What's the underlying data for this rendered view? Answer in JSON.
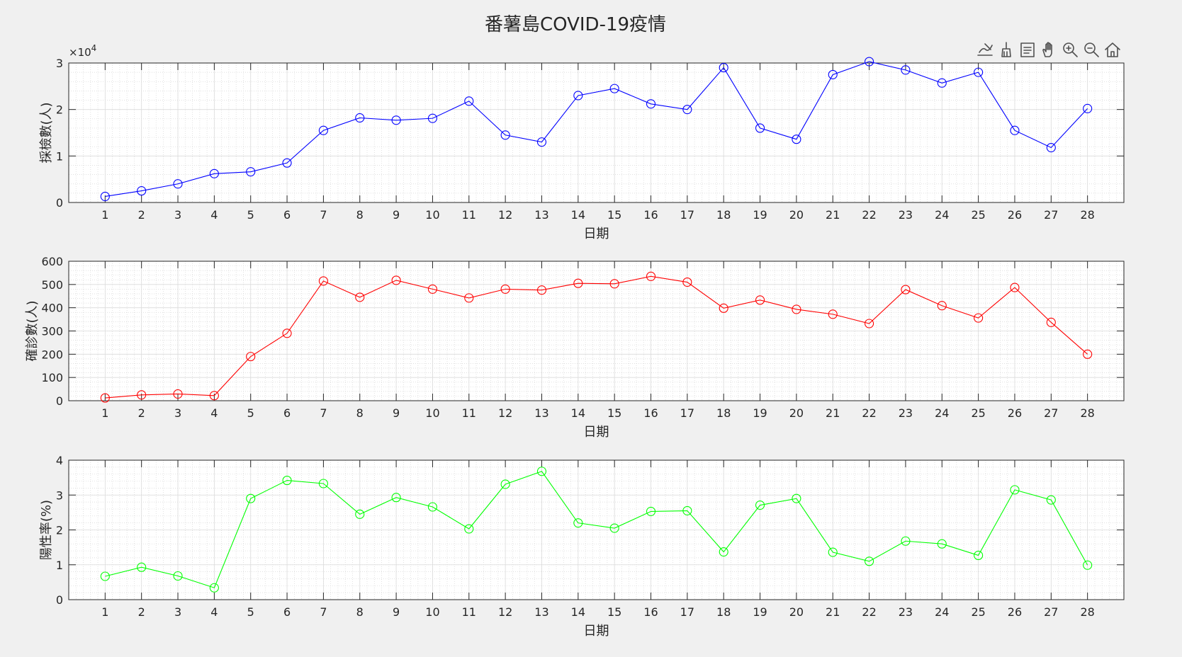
{
  "figure": {
    "title": "番薯島COVID-19疫情",
    "toolbar": [
      {
        "name": "edit-plot-icon"
      },
      {
        "name": "brush-icon"
      },
      {
        "name": "data-tips-icon"
      },
      {
        "name": "pan-hand-icon"
      },
      {
        "name": "zoom-in-icon"
      },
      {
        "name": "zoom-out-icon"
      },
      {
        "name": "home-icon"
      }
    ]
  },
  "chart_data": [
    {
      "type": "line",
      "xlabel": "日期",
      "ylabel": "採檢數(人)",
      "x": [
        1,
        2,
        3,
        4,
        5,
        6,
        7,
        8,
        9,
        10,
        11,
        12,
        13,
        14,
        15,
        16,
        17,
        18,
        19,
        20,
        21,
        22,
        23,
        24,
        25,
        26,
        27,
        28
      ],
      "xlim": [
        0,
        29
      ],
      "ylim": [
        0,
        30000
      ],
      "yticks": [
        0,
        10000,
        20000,
        30000
      ],
      "ytick_labels": [
        "0",
        "1",
        "2",
        "3"
      ],
      "y_exponent_label": "×10",
      "y_exponent_power": "4",
      "grid": true,
      "minor_grid": true,
      "series": [
        {
          "color": "#0000ff",
          "marker": "circle",
          "values": [
            1300,
            2500,
            4000,
            6200,
            6600,
            8500,
            15500,
            18200,
            17700,
            18100,
            21800,
            14500,
            13000,
            23000,
            24500,
            21200,
            20000,
            29000,
            16000,
            13600,
            27500,
            30300,
            28500,
            25700,
            28000,
            15500,
            11800,
            20200
          ]
        }
      ]
    },
    {
      "type": "line",
      "xlabel": "日期",
      "ylabel": "確診數(人)",
      "x": [
        1,
        2,
        3,
        4,
        5,
        6,
        7,
        8,
        9,
        10,
        11,
        12,
        13,
        14,
        15,
        16,
        17,
        18,
        19,
        20,
        21,
        22,
        23,
        24,
        25,
        26,
        27,
        28
      ],
      "xlim": [
        0,
        29
      ],
      "ylim": [
        0,
        600
      ],
      "yticks": [
        0,
        100,
        200,
        300,
        400,
        500,
        600
      ],
      "ytick_labels": [
        "0",
        "100",
        "200",
        "300",
        "400",
        "500",
        "600"
      ],
      "grid": true,
      "minor_grid": true,
      "series": [
        {
          "color": "#ff0000",
          "marker": "circle",
          "values": [
            12,
            25,
            29,
            22,
            190,
            290,
            515,
            445,
            518,
            480,
            442,
            480,
            476,
            505,
            503,
            535,
            510,
            398,
            433,
            393,
            372,
            332,
            478,
            409,
            356,
            487,
            337,
            200
          ]
        }
      ]
    },
    {
      "type": "line",
      "xlabel": "日期",
      "ylabel": "陽性率(%)",
      "x": [
        1,
        2,
        3,
        4,
        5,
        6,
        7,
        8,
        9,
        10,
        11,
        12,
        13,
        14,
        15,
        16,
        17,
        18,
        19,
        20,
        21,
        22,
        23,
        24,
        25,
        26,
        27,
        28
      ],
      "xlim": [
        0,
        29
      ],
      "ylim": [
        0,
        4
      ],
      "yticks": [
        0,
        1,
        2,
        3,
        4
      ],
      "ytick_labels": [
        "0",
        "1",
        "2",
        "3",
        "4"
      ],
      "grid": true,
      "minor_grid": true,
      "series": [
        {
          "color": "#00ff00",
          "marker": "circle",
          "values": [
            0.67,
            0.93,
            0.68,
            0.34,
            2.9,
            3.42,
            3.33,
            2.45,
            2.93,
            2.66,
            2.03,
            3.31,
            3.68,
            2.2,
            2.05,
            2.53,
            2.55,
            1.37,
            2.71,
            2.9,
            1.36,
            1.1,
            1.68,
            1.6,
            1.27,
            3.15,
            2.86,
            0.99
          ]
        }
      ]
    }
  ]
}
